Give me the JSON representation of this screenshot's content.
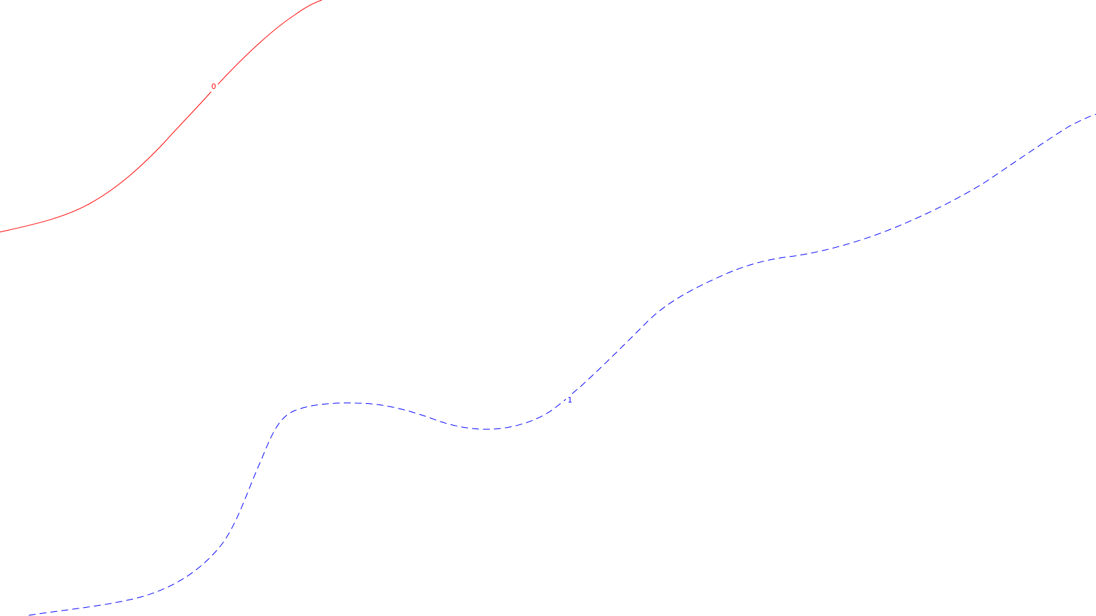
{
  "contours": [
    {
      "label": "0",
      "color": "#ff0000",
      "style": "solid"
    },
    {
      "label": "1",
      "color": "#0000ff",
      "style": "dashed"
    }
  ]
}
